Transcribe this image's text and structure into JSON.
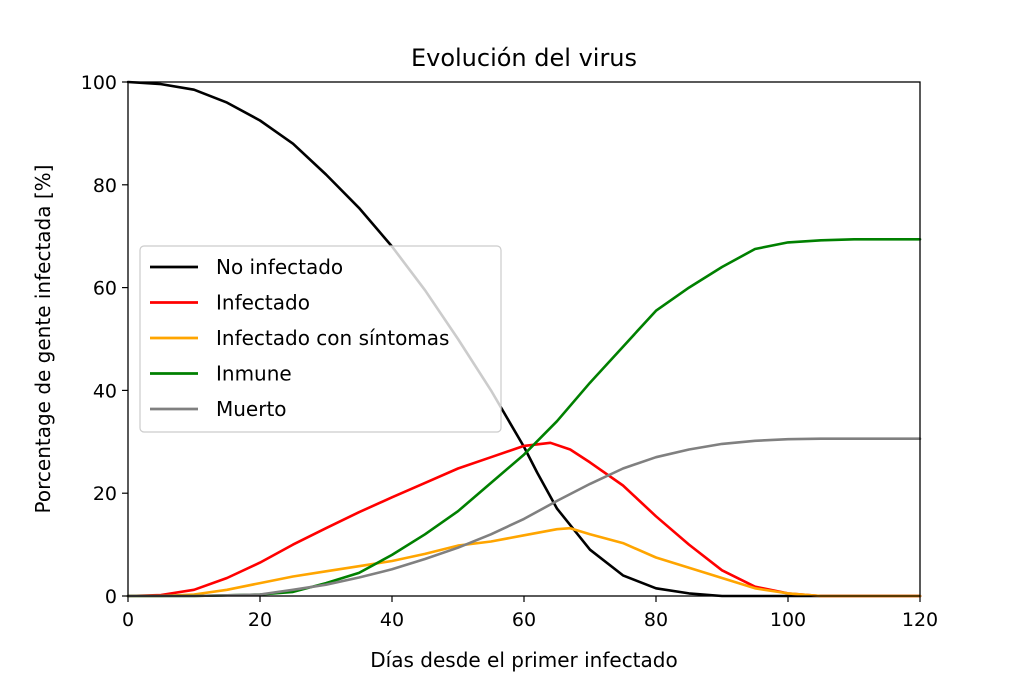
{
  "chart_data": {
    "type": "line",
    "title": "Evolución del virus",
    "xlabel": "Días desde el primer infectado",
    "ylabel": "Porcentage de gente infectada [%]",
    "xlim": [
      0,
      120
    ],
    "ylim": [
      0,
      100
    ],
    "xticks": [
      0,
      20,
      40,
      60,
      80,
      100,
      120
    ],
    "yticks": [
      0,
      20,
      40,
      60,
      80,
      100
    ],
    "grid": false,
    "legend_position": "center-left",
    "series": [
      {
        "name": "No infectado",
        "color": "#000000",
        "x": [
          0,
          5,
          10,
          15,
          20,
          25,
          30,
          35,
          40,
          45,
          50,
          55,
          60,
          62,
          65,
          70,
          75,
          80,
          85,
          90,
          100,
          120
        ],
        "y": [
          100,
          99.6,
          98.5,
          96,
          92.5,
          88,
          82,
          75.5,
          68,
          59.5,
          50,
          40,
          29,
          24,
          17,
          9,
          4,
          1.5,
          0.5,
          0,
          0,
          0
        ]
      },
      {
        "name": "Infectado",
        "color": "#ff0000",
        "x": [
          0,
          5,
          10,
          15,
          20,
          25,
          30,
          35,
          40,
          45,
          50,
          55,
          60,
          64,
          67,
          70,
          75,
          80,
          85,
          90,
          95,
          100,
          105,
          120
        ],
        "y": [
          0,
          0.2,
          1.2,
          3.5,
          6.5,
          10,
          13.2,
          16.3,
          19.2,
          22,
          24.8,
          27,
          29.2,
          29.8,
          28.5,
          26,
          21.5,
          15.5,
          10,
          5,
          1.8,
          0.5,
          0,
          0
        ]
      },
      {
        "name": "Infectado con síntomas",
        "color": "#ffa500",
        "x": [
          0,
          5,
          10,
          15,
          20,
          25,
          30,
          35,
          40,
          45,
          50,
          55,
          60,
          65,
          67,
          70,
          75,
          80,
          85,
          90,
          95,
          100,
          105,
          120
        ],
        "y": [
          0,
          0,
          0.3,
          1.2,
          2.5,
          3.8,
          4.8,
          5.8,
          6.8,
          8.2,
          9.8,
          10.6,
          11.8,
          13,
          13.2,
          12,
          10.3,
          7.5,
          5.5,
          3.5,
          1.5,
          0.5,
          0,
          0
        ]
      },
      {
        "name": "Inmune",
        "color": "#008000",
        "x": [
          0,
          10,
          20,
          25,
          30,
          35,
          40,
          45,
          50,
          55,
          60,
          65,
          70,
          75,
          80,
          85,
          90,
          95,
          100,
          105,
          110,
          120
        ],
        "y": [
          0,
          0,
          0.3,
          0.8,
          2.5,
          4.5,
          8,
          12,
          16.5,
          22,
          27.5,
          34,
          41.5,
          48.5,
          55.5,
          60,
          64,
          67.5,
          68.8,
          69.2,
          69.4,
          69.4
        ]
      },
      {
        "name": "Muerto",
        "color": "#808080",
        "x": [
          0,
          10,
          20,
          25,
          30,
          35,
          40,
          45,
          50,
          55,
          60,
          65,
          70,
          75,
          80,
          85,
          90,
          95,
          100,
          105,
          110,
          120
        ],
        "y": [
          0,
          0,
          0.3,
          1.2,
          2.2,
          3.6,
          5.2,
          7.2,
          9.4,
          12,
          15,
          18.5,
          21.8,
          24.8,
          27,
          28.5,
          29.6,
          30.2,
          30.5,
          30.6,
          30.6,
          30.6
        ]
      }
    ]
  }
}
